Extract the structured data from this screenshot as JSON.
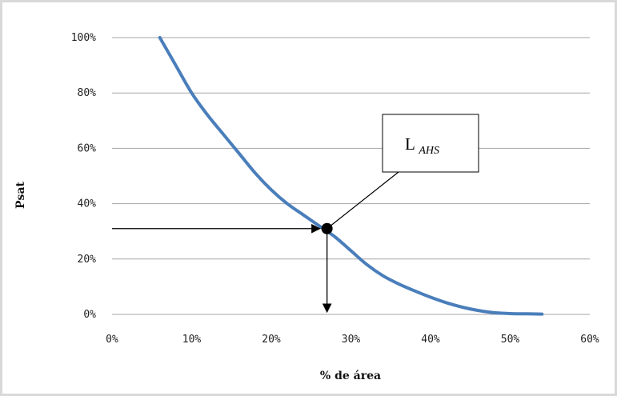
{
  "chart_data": {
    "type": "line",
    "title": "",
    "xlabel": "% de área",
    "ylabel": "Psat",
    "xlim": [
      0,
      60
    ],
    "ylim": [
      0,
      100
    ],
    "x_ticks": [
      "0%",
      "10%",
      "20%",
      "30%",
      "40%",
      "50%",
      "60%"
    ],
    "y_ticks": [
      "0%",
      "20%",
      "40%",
      "60%",
      "80%",
      "100%"
    ],
    "x_tick_values": [
      0,
      10,
      20,
      30,
      40,
      50,
      60
    ],
    "y_tick_values": [
      0,
      20,
      40,
      60,
      80,
      100
    ],
    "grid": "horizontal",
    "series": [
      {
        "color": "#4a7ebb",
        "x": [
          6,
          8,
          10,
          12,
          14,
          16,
          18,
          20,
          22,
          24,
          26,
          28,
          30,
          32,
          34,
          36,
          38,
          40,
          42,
          44,
          46,
          48,
          50,
          52,
          54
        ],
        "y": [
          100,
          90,
          80,
          72,
          65,
          58,
          51,
          45,
          40,
          36,
          32,
          28,
          23,
          18,
          14,
          11,
          8.5,
          6.2,
          4.2,
          2.6,
          1.4,
          0.6,
          0.3,
          0.2,
          0.1
        ]
      }
    ],
    "annotation": {
      "label_main": "L",
      "label_sub": "AHS",
      "point": {
        "x": 27,
        "y": 31
      }
    }
  },
  "colors": {
    "line": "#4a7ebb",
    "grid": "#a6a6a6",
    "frame": "#d9d9d9"
  }
}
